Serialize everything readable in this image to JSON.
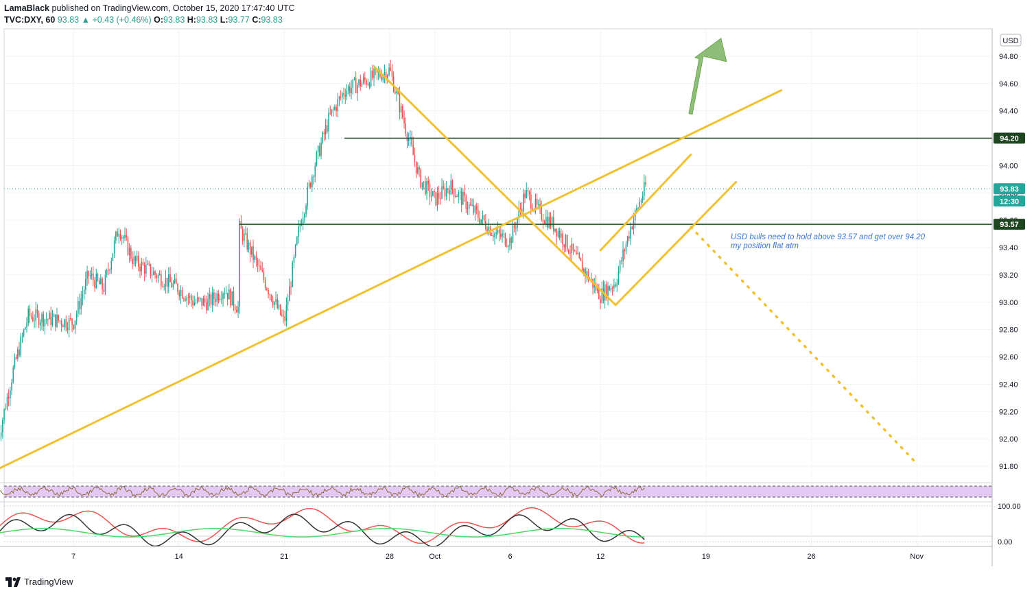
{
  "header": {
    "author": "LamaBlack",
    "published": "published on TradingView.com, October 15, 2020 17:47:40 UTC",
    "symbol": "TVC:DXY, 60",
    "last": "93.83",
    "change": "+0.43 (+0.46%)",
    "o_label": "O:",
    "o": "93.83",
    "h_label": "H:",
    "h": "93.83",
    "l_label": "L:",
    "l": "93.77",
    "c_label": "C:",
    "c": "93.83"
  },
  "footer": {
    "brand": "TradingView"
  },
  "colors": {
    "up": "#26a69a",
    "down": "#ef5350",
    "trend": "#f2c12e",
    "level": "#1e4620",
    "price_badge": "#26a69a",
    "note": "#3c78d8",
    "arrow": "#6aa84f"
  },
  "chart_data": [
    {
      "type": "candlestick",
      "title": "",
      "xlabel": "",
      "ylabel": "",
      "currency": "USD",
      "x_ticks": [
        "7",
        "14",
        "21",
        "28",
        "Oct",
        "6",
        "12",
        "19",
        "26",
        "Nov"
      ],
      "y_ticks": [
        "91.80",
        "92.00",
        "92.20",
        "92.40",
        "92.60",
        "92.80",
        "93.00",
        "93.20",
        "93.40",
        "93.60",
        "93.80",
        "94.00",
        "94.20",
        "94.40",
        "94.60",
        "94.80"
      ],
      "ylim": [
        91.7,
        95.0
      ],
      "price_path": [
        [
          "Sep 2",
          92.0
        ],
        [
          "Sep 3",
          92.5
        ],
        [
          "Sep 4",
          92.9
        ],
        [
          "Sep 7",
          92.85
        ],
        [
          "Sep 8",
          93.2
        ],
        [
          "Sep 9",
          93.1
        ],
        [
          "Sep 10",
          93.55
        ],
        [
          "Sep 11",
          93.3
        ],
        [
          "Sep 14",
          93.1
        ],
        [
          "Sep 15",
          93.0
        ],
        [
          "Sep 16",
          93.0
        ],
        [
          "Sep 17",
          93.1
        ],
        [
          "Sep 18",
          92.95
        ],
        [
          "Sep 18",
          93.55
        ],
        [
          "Sep 21",
          92.85
        ],
        [
          "Sep 22",
          93.55
        ],
        [
          "Sep 23",
          94.0
        ],
        [
          "Sep 24",
          94.35
        ],
        [
          "Sep 25",
          94.55
        ],
        [
          "Sep 28",
          94.7
        ],
        [
          "Sep 29",
          94.3
        ],
        [
          "Sep 30",
          93.9
        ],
        [
          "Oct 1",
          93.75
        ],
        [
          "Oct 2",
          93.85
        ],
        [
          "Oct 5",
          93.5
        ],
        [
          "Oct 6",
          93.45
        ],
        [
          "Oct 7",
          93.8
        ],
        [
          "Oct 8",
          93.65
        ],
        [
          "Oct 9",
          93.55
        ],
        [
          "Oct 12",
          93.05
        ],
        [
          "Oct 13",
          93.15
        ],
        [
          "Oct 14",
          93.55
        ],
        [
          "Oct 15",
          93.85
        ]
      ],
      "last_price": "93.83",
      "countdown": "12:30",
      "levels": [
        {
          "label": "94.20",
          "value": 94.2
        },
        {
          "label": "93.57",
          "value": 93.57
        }
      ],
      "annotation": [
        "USD bulls need to hold above 93.57 and get over 94.20",
        "my position flat atm"
      ]
    },
    {
      "type": "line",
      "title": "",
      "series": [],
      "note": "RSI-style oscillator band, filled purple"
    },
    {
      "type": "line",
      "title": "",
      "y_ticks": [
        "100.00",
        "0.00"
      ],
      "ylim": [
        0,
        100
      ],
      "series": []
    }
  ]
}
